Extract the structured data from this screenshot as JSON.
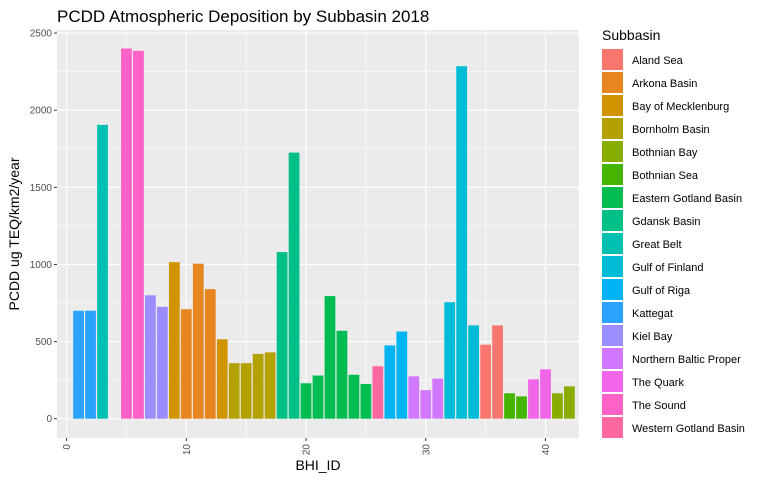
{
  "chart_data": {
    "type": "bar",
    "title": "PCDD Atmospheric Deposition by Subbasin 2018",
    "xlabel": "BHI_ID",
    "ylabel": "PCDD ug TEQ/km2/year",
    "xlim": [
      -0.8,
      42.8
    ],
    "ylim": [
      -125,
      2520
    ],
    "x_ticks": [
      0,
      10,
      20,
      30,
      40
    ],
    "y_ticks": [
      0,
      500,
      1000,
      1500,
      2000,
      2500
    ],
    "grid": true,
    "legend_title": "Subbasin",
    "legend_position": "right",
    "series": [
      {
        "name": "Aland Sea",
        "color": "#F8766D",
        "x": [
          35,
          36
        ],
        "values": [
          480,
          605
        ]
      },
      {
        "name": "Arkona Basin",
        "color": "#E7851E",
        "x": [
          10,
          11,
          12
        ],
        "values": [
          710,
          1005,
          840
        ]
      },
      {
        "name": "Bay of Mecklenburg",
        "color": "#D09400",
        "x": [
          9,
          13
        ],
        "values": [
          1015,
          515
        ]
      },
      {
        "name": "Bornholm Basin",
        "color": "#B2A100",
        "x": [
          14,
          15,
          16,
          17
        ],
        "values": [
          360,
          360,
          420,
          430
        ]
      },
      {
        "name": "Bothnian Bay",
        "color": "#89AC00",
        "x": [
          41,
          42
        ],
        "values": [
          165,
          210
        ]
      },
      {
        "name": "Bothnian Sea",
        "color": "#45B500",
        "x": [
          37,
          38
        ],
        "values": [
          165,
          145
        ]
      },
      {
        "name": "Eastern Gotland Basin",
        "color": "#00BC51",
        "x": [
          20,
          21,
          22,
          23,
          24,
          25
        ],
        "values": [
          230,
          280,
          795,
          570,
          285,
          225
        ]
      },
      {
        "name": "Gdansk Basin",
        "color": "#00C087",
        "x": [
          18,
          19
        ],
        "values": [
          1080,
          1725
        ]
      },
      {
        "name": "Great Belt",
        "color": "#00C0B2",
        "x": [
          3
        ],
        "values": [
          1905
        ]
      },
      {
        "name": "Gulf of Finland",
        "color": "#00BCD6",
        "x": [
          32,
          33,
          34
        ],
        "values": [
          755,
          2285,
          605
        ]
      },
      {
        "name": "Gulf of Riga",
        "color": "#00B3F2",
        "x": [
          27,
          28
        ],
        "values": [
          475,
          565
        ]
      },
      {
        "name": "Kattegat",
        "color": "#29A3FF",
        "x": [
          1,
          2
        ],
        "values": [
          700,
          700
        ]
      },
      {
        "name": "Kiel Bay",
        "color": "#9C8DFF",
        "x": [
          7,
          8
        ],
        "values": [
          800,
          725
        ]
      },
      {
        "name": "Northern Baltic Proper",
        "color": "#D277FF",
        "x": [
          29,
          30,
          31
        ],
        "values": [
          275,
          185,
          260
        ]
      },
      {
        "name": "The Quark",
        "color": "#F166E8",
        "x": [
          39,
          40
        ],
        "values": [
          255,
          320
        ]
      },
      {
        "name": "The Sound",
        "color": "#FF61C7",
        "x": [
          5,
          6
        ],
        "values": [
          2400,
          2385
        ]
      },
      {
        "name": "Western Gotland Basin",
        "color": "#FF689E",
        "x": [
          26
        ],
        "values": [
          340
        ]
      }
    ]
  }
}
